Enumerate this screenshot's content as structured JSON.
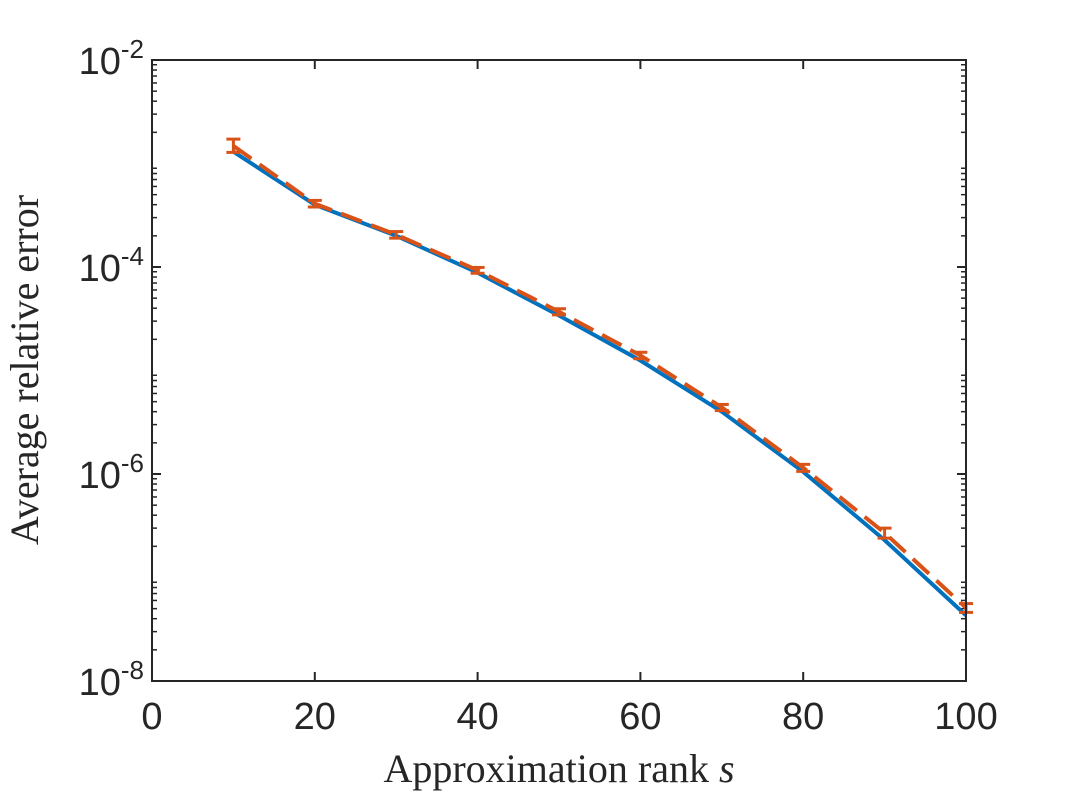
{
  "chart_data": {
    "type": "line",
    "xlabel": "Approximation rank",
    "xlabel_var": "s",
    "ylabel": "Average relative error",
    "xlim": [
      0,
      100
    ],
    "ylim": [
      1e-08,
      0.01
    ],
    "yscale": "log",
    "xticks": [
      0,
      20,
      40,
      60,
      80,
      100
    ],
    "yticks": [
      {
        "base": "10",
        "exp": "-8",
        "value": 1e-08
      },
      {
        "base": "10",
        "exp": "-6",
        "value": 1e-06
      },
      {
        "base": "10",
        "exp": "-4",
        "value": 0.0001
      },
      {
        "base": "10",
        "exp": "-2",
        "value": 0.01
      }
    ],
    "grid": false,
    "series": [
      {
        "style": "solid",
        "color": "#0072BD",
        "x": [
          10,
          20,
          30,
          40,
          50,
          60,
          70,
          80,
          90,
          100
        ],
        "y": [
          0.0013,
          0.0004,
          0.0002,
          8.8e-05,
          3.4e-05,
          1.25e-05,
          4e-06,
          1.05e-06,
          2.3e-07,
          4.3e-08
        ]
      },
      {
        "style": "dashed",
        "color": "#D95319",
        "errorbars": true,
        "x": [
          10,
          20,
          30,
          40,
          50,
          60,
          70,
          80,
          90,
          100
        ],
        "y": [
          0.00148,
          0.00041,
          0.000205,
          9.3e-05,
          3.7e-05,
          1.4e-05,
          4.4e-06,
          1.15e-06,
          2.7e-07,
          5.1e-08
        ],
        "err_low": [
          0.00128,
          0.00038,
          0.00019,
          8.7e-05,
          3.45e-05,
          1.3e-05,
          4.1e-06,
          1.06e-06,
          2.4e-07,
          4.6e-08
        ],
        "err_high": [
          0.00172,
          0.00044,
          0.00022,
          9.9e-05,
          3.95e-05,
          1.5e-05,
          4.7e-06,
          1.24e-06,
          3e-07,
          5.6e-08
        ]
      }
    ]
  }
}
